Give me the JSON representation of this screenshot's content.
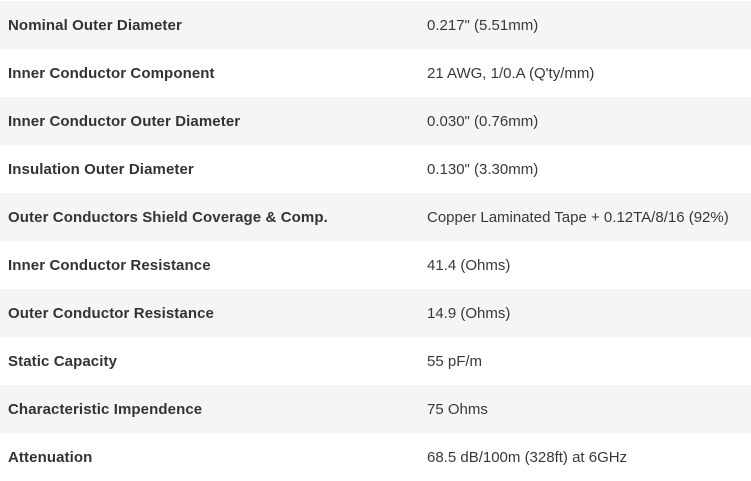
{
  "colors": {
    "row_alt_bg": "#f5f5f5",
    "row_bg": "#ffffff",
    "label_text": "#333333",
    "value_text": "#383838"
  },
  "table": {
    "rows": [
      {
        "label": "Nominal Outer Diameter",
        "value": "0.217\" (5.51mm)"
      },
      {
        "label": "Inner Conductor Component",
        "value": "21 AWG, 1/0.A (Q'ty/mm)"
      },
      {
        "label": "Inner Conductor Outer Diameter",
        "value": "0.030\" (0.76mm)"
      },
      {
        "label": "Insulation Outer Diameter",
        "value": "0.130\" (3.30mm)"
      },
      {
        "label": "Outer Conductors Shield Coverage & Comp.",
        "value": "Copper Laminated Tape + 0.12TA/8/16 (92%)"
      },
      {
        "label": "Inner Conductor Resistance",
        "value": "41.4 (Ohms)"
      },
      {
        "label": "Outer Conductor Resistance",
        "value": "14.9 (Ohms)"
      },
      {
        "label": "Static Capacity",
        "value": "55 pF/m"
      },
      {
        "label": "Characteristic Impendence",
        "value": "75 Ohms"
      },
      {
        "label": "Attenuation",
        "value": "68.5 dB/100m (328ft) at 6GHz"
      }
    ]
  }
}
